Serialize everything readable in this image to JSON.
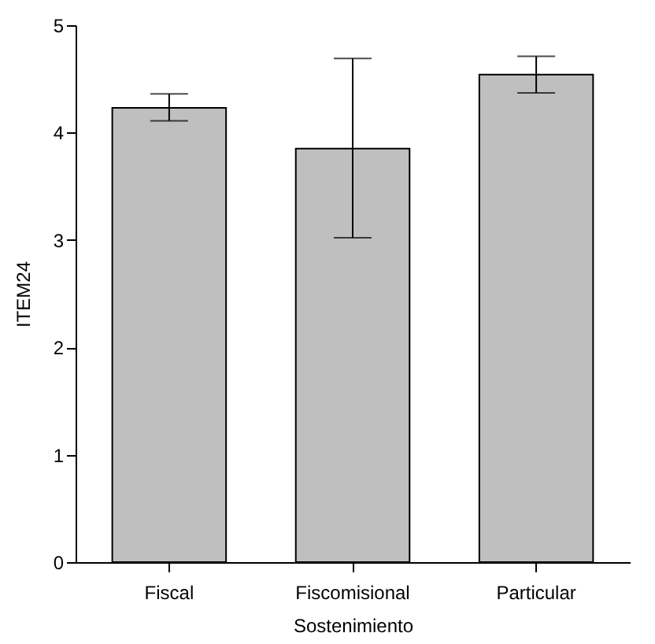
{
  "chart_data": {
    "type": "bar",
    "xlabel": "Sostenimiento",
    "ylabel": "ITEM24",
    "categories": [
      "Fiscal",
      "Fiscomisional",
      "Particular"
    ],
    "series": [
      {
        "color": "#bfbfbf",
        "values": [
          4.23,
          3.85,
          4.54
        ],
        "errors": [
          [
            4.11,
            4.36
          ],
          [
            3.02,
            4.69
          ],
          [
            4.37,
            4.71
          ]
        ]
      }
    ],
    "ylim": [
      0,
      5
    ],
    "yticks": [
      0,
      1,
      2,
      3,
      4,
      5
    ],
    "grid": false
  }
}
